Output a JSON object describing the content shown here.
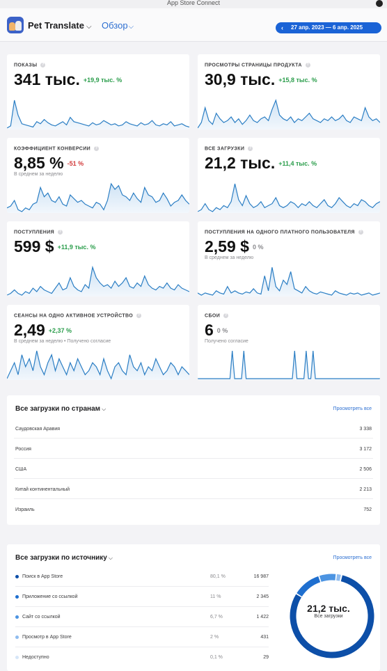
{
  "header": {
    "status_title": "App Store Connect",
    "app_name": "Pet Translate",
    "app_chevron": "⌵",
    "nav_overview": "Обзор",
    "nav_chevron": "⌵",
    "date_range": "27 апр. 2023 — 6 апр. 2025",
    "date_arrow": "‹",
    "help_mark": "?"
  },
  "metrics": [
    {
      "label": "ПОКАЗЫ",
      "value": "341 тыс.",
      "change": "+19,9 тыс. %",
      "trend": "pos",
      "note": "",
      "series": [
        12,
        14,
        38,
        24,
        16,
        15,
        14,
        13,
        18,
        16,
        20,
        17,
        15,
        14,
        16,
        18,
        15,
        22,
        18,
        17,
        16,
        15,
        14,
        17,
        15,
        16,
        19,
        17,
        15,
        16,
        14,
        15,
        18,
        16,
        15,
        14,
        17,
        15,
        16,
        19,
        15,
        14,
        16,
        15,
        18,
        14,
        15,
        16,
        14,
        13
      ]
    },
    {
      "label": "ПРОСМОТРЫ СТРАНИЦЫ ПРОДУКТА",
      "value": "30,9 тыс.",
      "change": "+15,8 тыс. %",
      "trend": "pos",
      "note": "",
      "series": [
        18,
        24,
        40,
        26,
        22,
        34,
        28,
        24,
        26,
        30,
        24,
        28,
        22,
        26,
        32,
        26,
        24,
        28,
        30,
        26,
        38,
        48,
        32,
        28,
        26,
        30,
        24,
        28,
        26,
        30,
        34,
        28,
        26,
        24,
        28,
        26,
        30,
        26,
        28,
        32,
        26,
        24,
        30,
        28,
        26,
        40,
        30,
        26,
        28,
        24
      ]
    },
    {
      "label": "КОЭФФИЦИЕНТ КОНВЕРСИИ",
      "value": "8,85 %",
      "change": "-51 %",
      "trend": "neg",
      "note": "В среднем за неделю",
      "series": [
        22,
        24,
        30,
        20,
        18,
        22,
        20,
        26,
        28,
        44,
        34,
        38,
        30,
        28,
        34,
        26,
        24,
        36,
        32,
        28,
        30,
        26,
        24,
        22,
        28,
        26,
        20,
        30,
        48,
        42,
        46,
        36,
        34,
        30,
        38,
        32,
        28,
        44,
        36,
        34,
        28,
        30,
        38,
        32,
        24,
        28,
        30,
        36,
        30,
        26
      ]
    },
    {
      "label": "ВСЕ ЗАГРУЗКИ",
      "value": "21,2 тыс.",
      "change": "+11,4 тыс. %",
      "trend": "pos",
      "note": "",
      "series": [
        14,
        16,
        22,
        16,
        14,
        18,
        16,
        20,
        18,
        24,
        42,
        26,
        20,
        30,
        22,
        18,
        20,
        24,
        18,
        20,
        22,
        28,
        20,
        18,
        20,
        24,
        22,
        18,
        22,
        20,
        24,
        20,
        18,
        22,
        26,
        20,
        18,
        22,
        28,
        24,
        20,
        18,
        22,
        20,
        26,
        24,
        20,
        18,
        22,
        24
      ]
    },
    {
      "label": "ПОСТУПЛЕНИЯ",
      "value": "599 $",
      "change": "+11,9 тыс. %",
      "trend": "pos",
      "note": "",
      "series": [
        8,
        10,
        14,
        10,
        8,
        12,
        10,
        16,
        12,
        18,
        14,
        12,
        10,
        16,
        22,
        14,
        16,
        28,
        18,
        14,
        12,
        20,
        16,
        40,
        28,
        22,
        18,
        20,
        16,
        24,
        18,
        22,
        28,
        18,
        16,
        22,
        18,
        30,
        20,
        16,
        14,
        18,
        16,
        22,
        16,
        14,
        20,
        16,
        14,
        12
      ]
    },
    {
      "label": "ПОСТУПЛЕНИЯ НА ОДНОГО ПЛАТНОГО ПОЛЬЗОВАТЕЛЯ",
      "value": "2,59 $",
      "change": "0 %",
      "trend": "zero",
      "note": "В среднем за неделю",
      "series": [
        12,
        10,
        12,
        11,
        10,
        14,
        12,
        11,
        18,
        12,
        14,
        12,
        11,
        13,
        12,
        16,
        12,
        11,
        28,
        14,
        36,
        18,
        14,
        24,
        20,
        32,
        16,
        14,
        12,
        18,
        14,
        12,
        11,
        13,
        12,
        11,
        10,
        14,
        12,
        11,
        10,
        12,
        11,
        12,
        10,
        11,
        12,
        10,
        11,
        12
      ]
    },
    {
      "label": "СЕАНСЫ НА ОДНО АКТИВНОЕ УСТРОЙСТВО",
      "value": "2,49",
      "change": "+2,37 %",
      "trend": "pos",
      "note": "В среднем за неделю • Получено согласие",
      "series": [
        24,
        28,
        32,
        26,
        36,
        30,
        34,
        28,
        38,
        30,
        26,
        32,
        36,
        28,
        34,
        30,
        26,
        32,
        28,
        34,
        30,
        26,
        28,
        32,
        30,
        26,
        34,
        28,
        24,
        30,
        32,
        28,
        26,
        36,
        30,
        28,
        32,
        26,
        30,
        28,
        34,
        30,
        26,
        28,
        32,
        30,
        26,
        30,
        28,
        26
      ]
    },
    {
      "label": "СБОИ",
      "value": "6",
      "change": "0 %",
      "trend": "zero",
      "note": "Получено согласие",
      "series": [
        0,
        0,
        0,
        0,
        0,
        0,
        0,
        0,
        0,
        0,
        0,
        0,
        0,
        0,
        0,
        1,
        0,
        0,
        0,
        0,
        1,
        0,
        0,
        0,
        0,
        0,
        0,
        0,
        0,
        0,
        0,
        0,
        0,
        0,
        0,
        0,
        0,
        0,
        0,
        0,
        0,
        0,
        1,
        0,
        0,
        0,
        0,
        1,
        0,
        0,
        1,
        0,
        0,
        0,
        0,
        0,
        0,
        0,
        0,
        0,
        0,
        0,
        0,
        0,
        0,
        0,
        0,
        0,
        0,
        0,
        0,
        0,
        0,
        0,
        0,
        0,
        0,
        0,
        0,
        0
      ]
    }
  ],
  "countries": {
    "title": "Все загрузки по странам",
    "chevron": "⌵",
    "see_all": "Просмотреть все",
    "rows": [
      {
        "name": "Саудовская Аравия",
        "value": "3 338"
      },
      {
        "name": "Россия",
        "value": "3 172"
      },
      {
        "name": "США",
        "value": "2 506"
      },
      {
        "name": "Китай континентальный",
        "value": "2 213"
      },
      {
        "name": "Израиль",
        "value": "752"
      }
    ]
  },
  "sources": {
    "title": "Все загрузки по источнику",
    "chevron": "⌵",
    "see_all": "Просмотреть все",
    "rows": [
      {
        "name": "Поиск в App Store",
        "pct": "80,1 %",
        "value": "16 987",
        "share": 80.1,
        "color": "#0d4fa8"
      },
      {
        "name": "Приложение со ссылкой",
        "pct": "11 %",
        "value": "2 345",
        "share": 11,
        "color": "#1f6fcf"
      },
      {
        "name": "Сайт со ссылкой",
        "pct": "6,7 %",
        "value": "1 422",
        "share": 6.7,
        "color": "#4c94e2"
      },
      {
        "name": "Просмотр в App Store",
        "pct": "2 %",
        "value": "431",
        "share": 2,
        "color": "#8fbcef"
      },
      {
        "name": "Недоступно",
        "pct": "0,1 %",
        "value": "29",
        "share": 0.1,
        "color": "#d6e6f8"
      }
    ],
    "total_value": "21,2 тыс.",
    "total_label": "Все загрузки"
  },
  "colors": {
    "line": "#2b7ec4",
    "fill_top": "#cfe3f5",
    "fill_bottom": "#f2f7fc"
  }
}
